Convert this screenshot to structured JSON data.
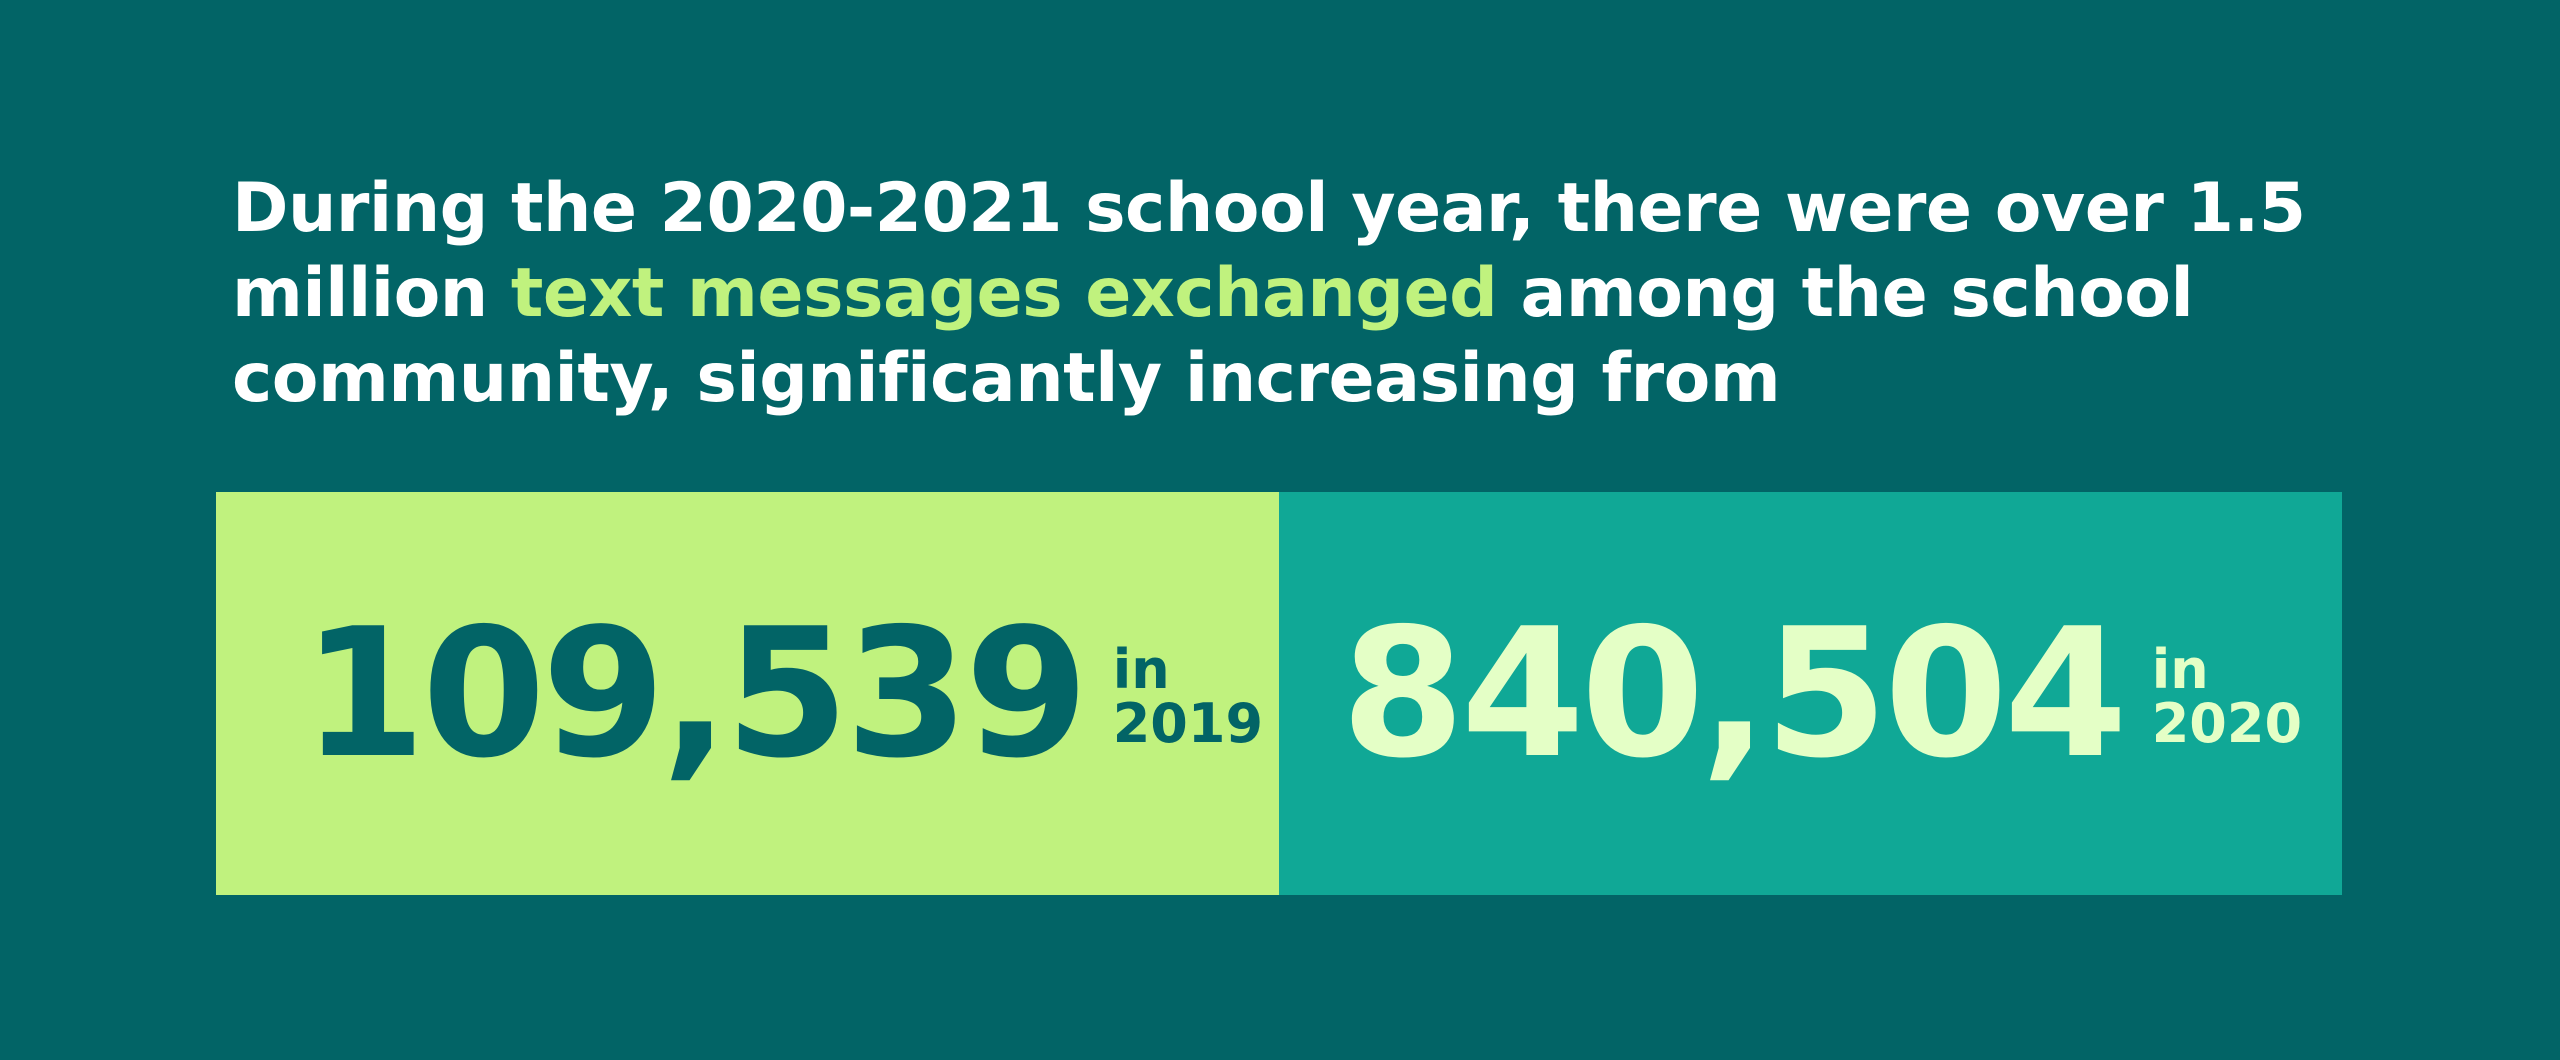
{
  "headline": {
    "line1": "During the 2020-2021 school year, there were over 1.5",
    "line2_before": "million ",
    "line2_highlight": "text messages exchanged",
    "line2_after": " among the school",
    "line3": "community, significantly increasing from"
  },
  "stats": [
    {
      "value": "109,539",
      "prefix": "in",
      "year": "2019"
    },
    {
      "value": "840,504",
      "prefix": "in",
      "year": "2020"
    }
  ],
  "colors": {
    "background": "#026466",
    "highlight": "#c0f27e",
    "panel_left": "#c0f27e",
    "panel_right": "#10a896",
    "text_light": "#e4ffc6"
  }
}
